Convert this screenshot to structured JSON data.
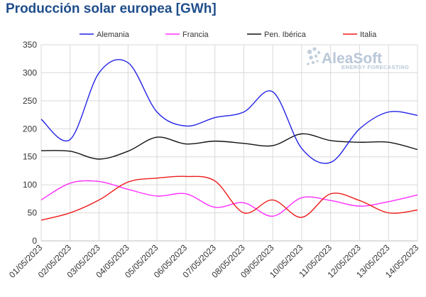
{
  "chart_data": {
    "type": "line",
    "title": "Producción solar europea [GWh]",
    "xlabel": "",
    "ylabel": "",
    "ylim": [
      0,
      350
    ],
    "yticks": [
      0,
      50,
      100,
      150,
      200,
      250,
      300,
      350
    ],
    "grid": true,
    "legend_position": "top",
    "categories": [
      "01/05/2023",
      "02/05/2023",
      "03/05/2023",
      "04/05/2023",
      "05/05/2023",
      "06/05/2023",
      "07/05/2023",
      "08/05/2023",
      "09/05/2023",
      "10/05/2023",
      "11/05/2023",
      "12/05/2023",
      "13/05/2023",
      "14/05/2023"
    ],
    "series": [
      {
        "name": "Alemania",
        "color": "#2323e6",
        "values": [
          217,
          181,
          300,
          318,
          230,
          205,
          220,
          230,
          266,
          165,
          140,
          200,
          230,
          224
        ]
      },
      {
        "name": "Francia",
        "color": "#ff2eff",
        "values": [
          73,
          103,
          106,
          92,
          80,
          84,
          60,
          68,
          44,
          77,
          72,
          62,
          70,
          82
        ]
      },
      {
        "name": "Pen. Ibérica",
        "color": "#111111",
        "values": [
          161,
          160,
          146,
          160,
          185,
          173,
          178,
          174,
          170,
          191,
          179,
          176,
          176,
          163
        ]
      },
      {
        "name": "Italia",
        "color": "#ee1c1c",
        "values": [
          37,
          50,
          73,
          105,
          112,
          115,
          107,
          50,
          73,
          42,
          84,
          72,
          50,
          55
        ]
      }
    ]
  },
  "logo": {
    "name": "AleaSoft",
    "tagline": "ENERGY FORECASTING",
    "icon": "aleasoft-dots-logo"
  }
}
